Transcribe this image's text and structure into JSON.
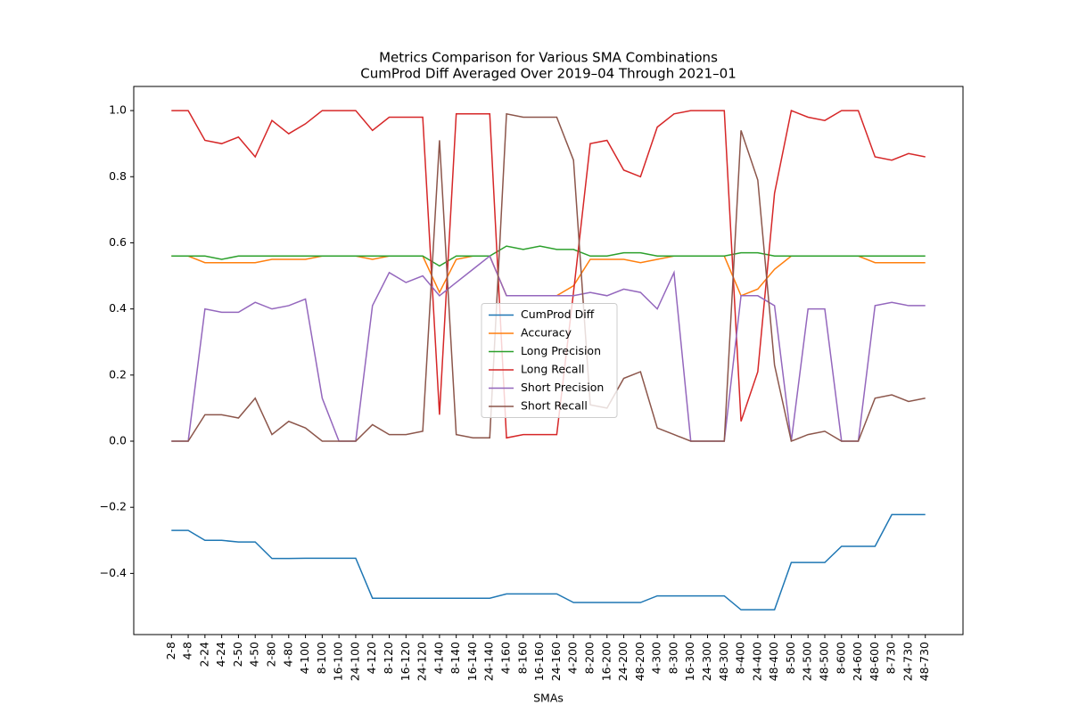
{
  "chart_data": {
    "type": "line",
    "title": "Metrics Comparison for Various SMA Combinations",
    "subtitle": "CumProd Diff Averaged Over 2019–04 Through 2021–01",
    "x_label": "SMAs",
    "categories": [
      "2-8",
      "4-8",
      "2-24",
      "4-24",
      "2-50",
      "4-50",
      "2-80",
      "4-80",
      "4-100",
      "8-100",
      "16-100",
      "24-100",
      "4-120",
      "8-120",
      "16-120",
      "24-120",
      "4-140",
      "8-140",
      "16-140",
      "24-140",
      "4-160",
      "8-160",
      "16-160",
      "24-160",
      "4-200",
      "8-200",
      "16-200",
      "24-200",
      "48-200",
      "4-300",
      "8-300",
      "16-300",
      "24-300",
      "48-300",
      "8-400",
      "24-400",
      "48-400",
      "8-500",
      "24-500",
      "48-500",
      "8-600",
      "24-600",
      "48-600",
      "8-730",
      "24-730",
      "48-730"
    ],
    "series": [
      {
        "name": "CumProd Diff",
        "color": "#1f77b4",
        "values": [
          -0.27,
          -0.27,
          -0.3,
          -0.3,
          -0.305,
          -0.305,
          -0.355,
          -0.355,
          -0.354,
          -0.354,
          -0.354,
          -0.354,
          -0.475,
          -0.475,
          -0.475,
          -0.475,
          -0.475,
          -0.475,
          -0.475,
          -0.475,
          -0.462,
          -0.462,
          -0.462,
          -0.462,
          -0.488,
          -0.488,
          -0.488,
          -0.488,
          -0.488,
          -0.468,
          -0.468,
          -0.468,
          -0.468,
          -0.468,
          -0.51,
          -0.51,
          -0.51,
          -0.367,
          -0.367,
          -0.367,
          -0.318,
          -0.318,
          -0.318,
          -0.222,
          -0.222,
          -0.222
        ]
      },
      {
        "name": "Accuracy",
        "color": "#ff7f0e",
        "values": [
          0.56,
          0.56,
          0.54,
          0.54,
          0.54,
          0.54,
          0.55,
          0.55,
          0.55,
          0.56,
          0.56,
          0.56,
          0.55,
          0.56,
          0.56,
          0.56,
          0.45,
          0.55,
          0.56,
          0.56,
          0.44,
          0.44,
          0.44,
          0.44,
          0.47,
          0.55,
          0.55,
          0.55,
          0.54,
          0.55,
          0.56,
          0.56,
          0.56,
          0.56,
          0.44,
          0.46,
          0.52,
          0.56,
          0.56,
          0.56,
          0.56,
          0.56,
          0.54,
          0.54,
          0.54,
          0.54
        ]
      },
      {
        "name": "Long Precision",
        "color": "#2ca02c",
        "values": [
          0.56,
          0.56,
          0.56,
          0.55,
          0.56,
          0.56,
          0.56,
          0.56,
          0.56,
          0.56,
          0.56,
          0.56,
          0.56,
          0.56,
          0.56,
          0.56,
          0.53,
          0.56,
          0.56,
          0.56,
          0.59,
          0.58,
          0.59,
          0.58,
          0.58,
          0.56,
          0.56,
          0.57,
          0.57,
          0.56,
          0.56,
          0.56,
          0.56,
          0.56,
          0.57,
          0.57,
          0.56,
          0.56,
          0.56,
          0.56,
          0.56,
          0.56,
          0.56,
          0.56,
          0.56,
          0.56
        ]
      },
      {
        "name": "Long Recall",
        "color": "#d62728",
        "values": [
          1.0,
          1.0,
          0.91,
          0.9,
          0.92,
          0.86,
          0.97,
          0.93,
          0.96,
          1.0,
          1.0,
          1.0,
          0.94,
          0.98,
          0.98,
          0.98,
          0.08,
          0.99,
          0.99,
          0.99,
          0.01,
          0.02,
          0.02,
          0.02,
          0.45,
          0.9,
          0.91,
          0.82,
          0.8,
          0.95,
          0.99,
          1.0,
          1.0,
          1.0,
          0.06,
          0.21,
          0.75,
          1.0,
          0.98,
          0.97,
          1.0,
          1.0,
          0.86,
          0.85,
          0.87,
          0.86
        ]
      },
      {
        "name": "Short Precision",
        "color": "#9467bd",
        "values": [
          0,
          0,
          0.4,
          0.39,
          0.39,
          0.42,
          0.4,
          0.41,
          0.43,
          0.13,
          0,
          0,
          0.41,
          0.51,
          0.48,
          0.5,
          0.44,
          0.48,
          0.52,
          0.56,
          0.44,
          0.44,
          0.44,
          0.44,
          0.44,
          0.45,
          0.44,
          0.46,
          0.45,
          0.4,
          0.51,
          0,
          0,
          0,
          0.44,
          0.44,
          0.41,
          0,
          0.4,
          0.4,
          0,
          0,
          0.41,
          0.42,
          0.41,
          0.41
        ]
      },
      {
        "name": "Short Recall",
        "color": "#8c564b",
        "values": [
          0,
          0,
          0.08,
          0.08,
          0.07,
          0.13,
          0.02,
          0.06,
          0.04,
          0,
          0,
          0,
          0.05,
          0.02,
          0.02,
          0.03,
          0.91,
          0.02,
          0.01,
          0.01,
          0.99,
          0.98,
          0.98,
          0.98,
          0.85,
          0.11,
          0.1,
          0.19,
          0.21,
          0.04,
          0.02,
          0,
          0,
          0,
          0.94,
          0.79,
          0.23,
          0,
          0.02,
          0.03,
          0,
          0,
          0.13,
          0.14,
          0.12,
          0.13
        ]
      }
    ],
    "ylim": [
      -0.585,
      1.073
    ],
    "yticks": [
      {
        "value": -0.4,
        "label": "−0.4"
      },
      {
        "value": -0.2,
        "label": "−0.2"
      },
      {
        "value": 0,
        "label": "0.0"
      },
      0.2,
      0.4,
      0.6,
      0.8,
      {
        "value": 1,
        "label": "1.0"
      }
    ],
    "legend": "center"
  }
}
